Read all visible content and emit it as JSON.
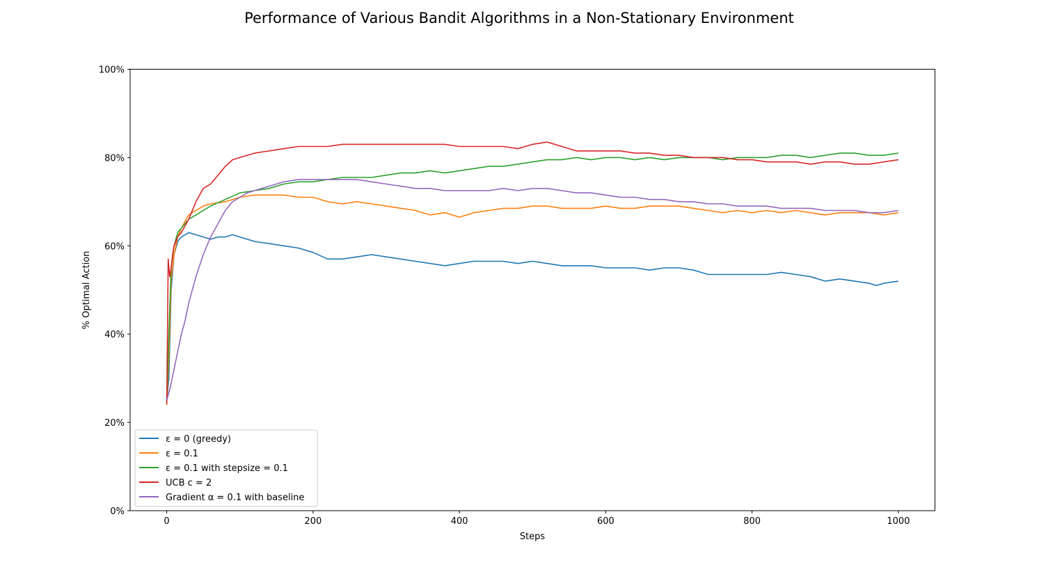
{
  "chart_data": {
    "type": "line",
    "title": "Performance of Various Bandit Algorithms in a Non-Stationary Environment",
    "xlabel": "Steps",
    "ylabel": "% Optimal Action",
    "xlim": [
      -50,
      1050
    ],
    "ylim": [
      0,
      100
    ],
    "x_ticks": [
      0,
      200,
      400,
      600,
      800,
      1000
    ],
    "x_tick_labels": [
      "0",
      "200",
      "400",
      "600",
      "800",
      "1000"
    ],
    "y_ticks": [
      0,
      20,
      40,
      60,
      80,
      100
    ],
    "y_tick_labels": [
      "0%",
      "20%",
      "40%",
      "60%",
      "80%",
      "100%"
    ],
    "grid": false,
    "legend_position": "lower-left",
    "series": [
      {
        "name": "ε = 0 (greedy)",
        "color": "#1f77b4",
        "x": [
          0,
          3,
          6,
          10,
          15,
          20,
          25,
          30,
          40,
          50,
          60,
          70,
          80,
          90,
          100,
          110,
          120,
          140,
          160,
          180,
          200,
          220,
          240,
          260,
          280,
          300,
          320,
          340,
          360,
          380,
          400,
          420,
          440,
          460,
          480,
          500,
          520,
          540,
          560,
          580,
          600,
          620,
          640,
          660,
          680,
          700,
          720,
          740,
          760,
          780,
          800,
          820,
          840,
          860,
          880,
          900,
          920,
          940,
          960,
          970,
          980,
          1000
        ],
        "y": [
          25,
          30,
          50,
          58,
          61,
          62,
          62.5,
          63,
          62.5,
          62,
          61.5,
          62,
          62,
          62.5,
          62,
          61.5,
          61,
          60.5,
          60,
          59.5,
          58.5,
          57,
          57,
          57.5,
          58,
          57.5,
          57,
          56.5,
          56,
          55.5,
          56,
          56.5,
          56.5,
          56.5,
          56,
          56.5,
          56,
          55.5,
          55.5,
          55.5,
          55,
          55,
          55,
          54.5,
          55,
          55,
          54.5,
          53.5,
          53.5,
          53.5,
          53.5,
          53.5,
          54,
          53.5,
          53,
          52,
          52.5,
          52,
          51.5,
          51,
          51.5,
          52
        ]
      },
      {
        "name": "ε = 0.1",
        "color": "#ff7f0e",
        "x": [
          0,
          3,
          6,
          10,
          15,
          20,
          30,
          40,
          50,
          60,
          80,
          100,
          120,
          140,
          160,
          180,
          200,
          220,
          240,
          260,
          280,
          300,
          320,
          340,
          360,
          380,
          400,
          420,
          440,
          460,
          480,
          500,
          520,
          540,
          560,
          580,
          600,
          620,
          640,
          660,
          680,
          700,
          720,
          740,
          760,
          780,
          800,
          820,
          840,
          860,
          880,
          900,
          920,
          940,
          960,
          980,
          1000
        ],
        "y": [
          24,
          35,
          52,
          58,
          62,
          64,
          67,
          68,
          69,
          69.5,
          70,
          71,
          71.5,
          71.5,
          71.5,
          71,
          71,
          70,
          69.5,
          70,
          69.5,
          69,
          68.5,
          68,
          67,
          67.5,
          66.5,
          67.5,
          68,
          68.5,
          68.5,
          69,
          69,
          68.5,
          68.5,
          68.5,
          69,
          68.5,
          68.5,
          69,
          69,
          69,
          68.5,
          68,
          67.5,
          68,
          67.5,
          68,
          67.5,
          68,
          67.5,
          67,
          67.5,
          67.5,
          67.5,
          67,
          67.5
        ]
      },
      {
        "name": "ε = 0.1 with stepsize = 0.1",
        "color": "#2ca02c",
        "x": [
          0,
          3,
          6,
          10,
          15,
          20,
          30,
          40,
          50,
          60,
          80,
          100,
          120,
          140,
          160,
          180,
          200,
          220,
          240,
          260,
          280,
          300,
          320,
          340,
          360,
          380,
          400,
          420,
          440,
          460,
          480,
          500,
          520,
          540,
          560,
          580,
          600,
          620,
          640,
          660,
          680,
          700,
          720,
          740,
          760,
          780,
          800,
          820,
          840,
          860,
          880,
          900,
          920,
          940,
          960,
          980,
          1000
        ],
        "y": [
          25,
          40,
          55,
          60,
          63,
          64,
          66,
          67,
          68,
          69,
          70.5,
          72,
          72.5,
          73,
          74,
          74.5,
          74.5,
          75,
          75.5,
          75.5,
          75.5,
          76,
          76.5,
          76.5,
          77,
          76.5,
          77,
          77.5,
          78,
          78,
          78.5,
          79,
          79.5,
          79.5,
          80,
          79.5,
          80,
          80,
          79.5,
          80,
          79.5,
          80,
          80,
          80,
          79.5,
          80,
          80,
          80,
          80.5,
          80.5,
          80,
          80.5,
          81,
          81,
          80.5,
          80.5,
          81
        ]
      },
      {
        "name": "UCB c = 2",
        "color": "#d62728",
        "x": [
          0,
          2,
          4,
          6,
          8,
          10,
          15,
          20,
          30,
          40,
          50,
          60,
          70,
          80,
          90,
          100,
          120,
          140,
          160,
          180,
          200,
          220,
          240,
          260,
          280,
          300,
          320,
          340,
          360,
          380,
          400,
          420,
          440,
          460,
          480,
          500,
          520,
          540,
          560,
          580,
          600,
          620,
          640,
          660,
          680,
          700,
          720,
          740,
          760,
          780,
          800,
          820,
          840,
          860,
          880,
          900,
          920,
          940,
          960,
          980,
          1000
        ],
        "y": [
          24,
          57,
          53,
          55,
          58,
          60,
          62,
          63,
          66,
          70,
          73,
          74,
          76,
          78,
          79.5,
          80,
          81,
          81.5,
          82,
          82.5,
          82.5,
          82.5,
          83,
          83,
          83,
          83,
          83,
          83,
          83,
          83,
          82.5,
          82.5,
          82.5,
          82.5,
          82,
          83,
          83.5,
          82.5,
          81.5,
          81.5,
          81.5,
          81.5,
          81,
          81,
          80.5,
          80.5,
          80,
          80,
          80,
          79.5,
          79.5,
          79,
          79,
          79,
          78.5,
          79,
          79,
          78.5,
          78.5,
          79,
          79.5
        ]
      },
      {
        "name": "Gradient α = 0.1 with baseline",
        "color": "#9467bd",
        "x": [
          0,
          5,
          10,
          15,
          20,
          25,
          30,
          40,
          50,
          60,
          70,
          80,
          90,
          100,
          110,
          120,
          130,
          140,
          150,
          160,
          180,
          200,
          220,
          240,
          260,
          280,
          300,
          320,
          340,
          360,
          380,
          400,
          420,
          440,
          460,
          480,
          500,
          520,
          540,
          560,
          580,
          600,
          620,
          640,
          660,
          680,
          700,
          720,
          740,
          760,
          780,
          800,
          820,
          840,
          860,
          880,
          900,
          920,
          940,
          960,
          980,
          1000
        ],
        "y": [
          25,
          28,
          32,
          36,
          40,
          43,
          47,
          53,
          58,
          62,
          65,
          68,
          70,
          71,
          72,
          72.5,
          73,
          73.5,
          74,
          74.5,
          75,
          75,
          75,
          75,
          75,
          74.5,
          74,
          73.5,
          73,
          73,
          72.5,
          72.5,
          72.5,
          72.5,
          73,
          72.5,
          73,
          73,
          72.5,
          72,
          72,
          71.5,
          71,
          71,
          70.5,
          70.5,
          70,
          70,
          69.5,
          69.5,
          69,
          69,
          69,
          68.5,
          68.5,
          68.5,
          68,
          68,
          68,
          67.5,
          67.5,
          68
        ]
      }
    ]
  }
}
